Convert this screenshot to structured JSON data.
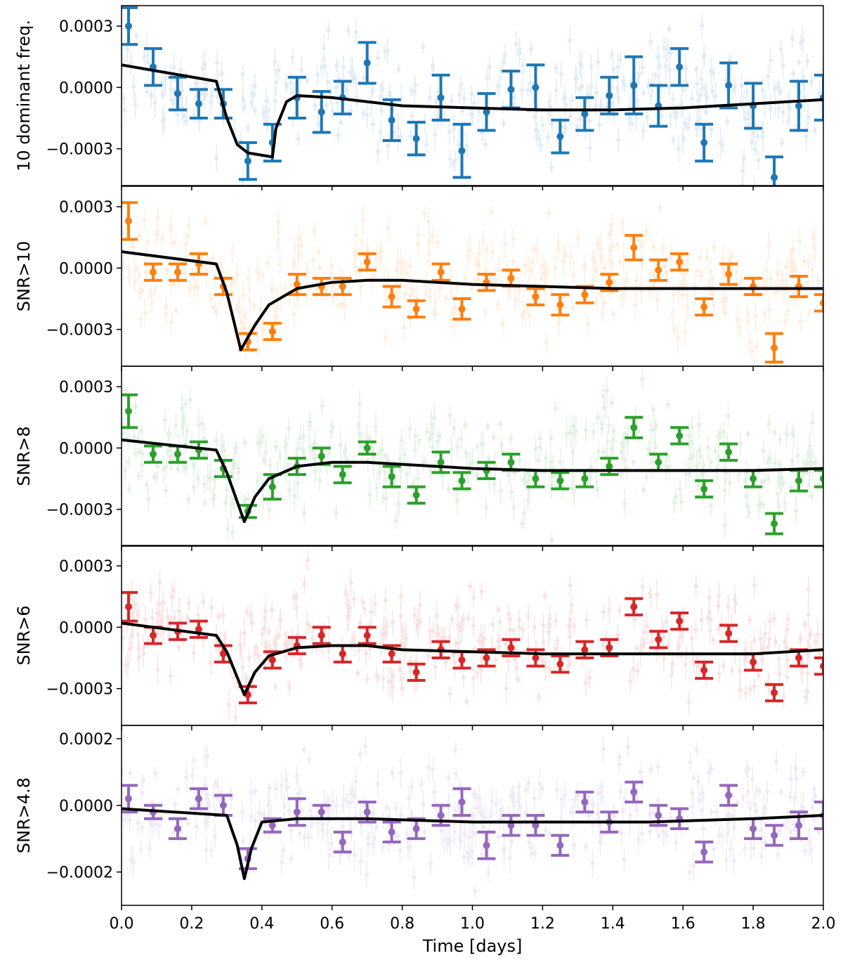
{
  "chart_data": {
    "type": "scatter",
    "xlabel": "Time [days]",
    "xlim": [
      0.0,
      2.0
    ],
    "xticks": [
      "0.0",
      "0.2",
      "0.4",
      "0.6",
      "0.8",
      "1.0",
      "1.2",
      "1.4",
      "1.6",
      "1.8",
      "2.0"
    ],
    "binned_times": [
      0.02,
      0.09,
      0.16,
      0.22,
      0.29,
      0.36,
      0.43,
      0.5,
      0.57,
      0.63,
      0.7,
      0.77,
      0.84,
      0.91,
      0.97,
      1.04,
      1.11,
      1.18,
      1.25,
      1.32,
      1.39,
      1.46,
      1.53,
      1.59,
      1.66,
      1.73,
      1.8,
      1.86,
      1.93,
      2.0
    ],
    "panels": [
      {
        "ylabel": "10 dominant freq.",
        "color": "#1f77b4",
        "ylim": [
          -0.00048,
          0.0004
        ],
        "yticks": [
          0.0003,
          0.0,
          -0.0003
        ],
        "ytick_labels": [
          "0.0003",
          "0.0000",
          "−0.0003"
        ],
        "binned_values": [
          0.0003,
          0.0001,
          -3e-05,
          -8e-05,
          -8e-05,
          -0.00036,
          -0.00027,
          -5e-05,
          -0.00012,
          -5e-05,
          0.00012,
          -0.00016,
          -0.00025,
          -5e-05,
          -0.00031,
          -0.00012,
          -1e-05,
          0.0,
          -0.00024,
          -0.00013,
          -4e-05,
          1e-05,
          -9e-05,
          0.0001,
          -0.00027,
          1e-05,
          -9e-05,
          -0.00044,
          -9e-05,
          -5e-05
        ],
        "binned_errors": [
          9e-05,
          9e-05,
          8e-05,
          7e-05,
          7e-05,
          9e-05,
          9e-05,
          0.0001,
          0.0001,
          8e-05,
          0.0001,
          0.0001,
          8e-05,
          0.00011,
          0.00013,
          9e-05,
          9e-05,
          0.00011,
          8e-05,
          8e-05,
          9e-05,
          0.00014,
          0.0001,
          9e-05,
          9e-05,
          0.00011,
          0.00011,
          0.0001,
          0.00012,
          0.00011
        ],
        "model": [
          [
            0.0,
            0.00011
          ],
          [
            0.27,
            3e-05
          ],
          [
            0.3,
            -0.00015
          ],
          [
            0.33,
            -0.00028
          ],
          [
            0.36,
            -0.00032
          ],
          [
            0.43,
            -0.00034
          ],
          [
            0.44,
            -0.0002
          ],
          [
            0.47,
            -7e-05
          ],
          [
            0.5,
            -4e-05
          ],
          [
            0.6,
            -5e-05
          ],
          [
            0.8,
            -9e-05
          ],
          [
            1.0,
            -0.0001
          ],
          [
            1.2,
            -0.00011
          ],
          [
            1.4,
            -0.00011
          ],
          [
            1.6,
            -0.0001
          ],
          [
            1.8,
            -8e-05
          ],
          [
            2.0,
            -6e-05
          ]
        ]
      },
      {
        "ylabel": "SNR>10",
        "color": "#ff7f0e",
        "ylim": [
          -0.00048,
          0.0004
        ],
        "yticks": [
          0.0003,
          0.0,
          -0.0003
        ],
        "ytick_labels": [
          "0.0003",
          "0.0000",
          "−0.0003"
        ],
        "binned_values": [
          0.00023,
          -2e-05,
          -2e-05,
          2e-05,
          -9e-05,
          -0.00036,
          -0.00031,
          -8e-05,
          -9e-05,
          -9e-05,
          3e-05,
          -0.00014,
          -0.0002,
          -2e-05,
          -0.0002,
          -7e-05,
          -5e-05,
          -0.00014,
          -0.00018,
          -0.00013,
          -7e-05,
          0.0001,
          -1e-05,
          3e-05,
          -0.00019,
          -3e-05,
          -9e-05,
          -0.00039,
          -9e-05,
          -0.00017
        ],
        "binned_errors": [
          9e-05,
          4e-05,
          4e-05,
          5e-05,
          4e-05,
          4e-05,
          4e-05,
          5e-05,
          4e-05,
          4e-05,
          4e-05,
          5e-05,
          4e-05,
          4e-05,
          5e-05,
          4e-05,
          4e-05,
          4e-05,
          5e-05,
          4e-05,
          4e-05,
          6e-05,
          5e-05,
          4e-05,
          4e-05,
          5e-05,
          4e-05,
          7e-05,
          5e-05,
          4e-05
        ],
        "model": [
          [
            0.0,
            8e-05
          ],
          [
            0.27,
            2e-05
          ],
          [
            0.3,
            -0.00012
          ],
          [
            0.34,
            -0.0004
          ],
          [
            0.38,
            -0.00028
          ],
          [
            0.42,
            -0.00018
          ],
          [
            0.5,
            -0.0001
          ],
          [
            0.6,
            -7e-05
          ],
          [
            0.7,
            -6e-05
          ],
          [
            0.8,
            -6e-05
          ],
          [
            1.0,
            -8e-05
          ],
          [
            1.2,
            -9e-05
          ],
          [
            1.4,
            -0.0001
          ],
          [
            1.6,
            -0.0001
          ],
          [
            1.8,
            -0.0001
          ],
          [
            2.0,
            -0.0001
          ]
        ]
      },
      {
        "ylabel": "SNR>8",
        "color": "#2ca02c",
        "ylim": [
          -0.00048,
          0.0004
        ],
        "yticks": [
          0.0003,
          0.0,
          -0.0003
        ],
        "ytick_labels": [
          "0.0003",
          "0.0000",
          "−0.0003"
        ],
        "binned_values": [
          0.00018,
          -3e-05,
          -3e-05,
          -1e-05,
          -0.0001,
          -0.00031,
          -0.00019,
          -9e-05,
          -4e-05,
          -0.00013,
          0.0,
          -0.00014,
          -0.00023,
          -7e-05,
          -0.00016,
          -0.00011,
          -7e-05,
          -0.00015,
          -0.00016,
          -0.00015,
          -9e-05,
          0.0001,
          -7e-05,
          6e-05,
          -0.0002,
          -2e-05,
          -0.00015,
          -0.00037,
          -0.00016,
          -0.00015
        ],
        "binned_errors": [
          8e-05,
          4e-05,
          4e-05,
          4e-05,
          4e-05,
          3e-05,
          6e-05,
          4e-05,
          4e-05,
          4e-05,
          3e-05,
          5e-05,
          4e-05,
          5e-05,
          4e-05,
          4e-05,
          4e-05,
          4e-05,
          4e-05,
          4e-05,
          4e-05,
          5e-05,
          4e-05,
          4e-05,
          4e-05,
          4e-05,
          4e-05,
          5e-05,
          5e-05,
          4e-05
        ],
        "model": [
          [
            0.0,
            4e-05
          ],
          [
            0.27,
            -1e-05
          ],
          [
            0.3,
            -0.00012
          ],
          [
            0.35,
            -0.00036
          ],
          [
            0.38,
            -0.00024
          ],
          [
            0.42,
            -0.00015
          ],
          [
            0.5,
            -9e-05
          ],
          [
            0.6,
            -7e-05
          ],
          [
            0.7,
            -7e-05
          ],
          [
            0.8,
            -8e-05
          ],
          [
            1.0,
            -0.0001
          ],
          [
            1.2,
            -0.00011
          ],
          [
            1.4,
            -0.00011
          ],
          [
            1.6,
            -0.00011
          ],
          [
            1.8,
            -0.00011
          ],
          [
            2.0,
            -0.0001
          ]
        ]
      },
      {
        "ylabel": "SNR>6",
        "color": "#d62728",
        "ylim": [
          -0.00048,
          0.0004
        ],
        "yticks": [
          0.0003,
          0.0,
          -0.0003
        ],
        "ytick_labels": [
          "0.0003",
          "0.0000",
          "−0.0003"
        ],
        "binned_values": [
          0.0001,
          -4e-05,
          -2e-05,
          -1e-05,
          -0.00013,
          -0.00033,
          -0.00016,
          -9e-05,
          -4e-05,
          -0.00013,
          -4e-05,
          -0.00013,
          -0.00022,
          -0.00011,
          -0.00016,
          -0.00015,
          -0.0001,
          -0.00015,
          -0.00018,
          -0.00011,
          -0.0001,
          0.0001,
          -6e-05,
          3e-05,
          -0.00021,
          -3e-05,
          -0.00017,
          -0.00032,
          -0.00015,
          -0.00019
        ],
        "binned_errors": [
          7e-05,
          4e-05,
          4e-05,
          4e-05,
          4e-05,
          4e-05,
          4e-05,
          4e-05,
          4e-05,
          4e-05,
          4e-05,
          4e-05,
          4e-05,
          4e-05,
          4e-05,
          4e-05,
          4e-05,
          4e-05,
          4e-05,
          4e-05,
          4e-05,
          4e-05,
          4e-05,
          4e-05,
          4e-05,
          4e-05,
          4e-05,
          4e-05,
          4e-05,
          4e-05
        ],
        "model": [
          [
            0.0,
            2e-05
          ],
          [
            0.27,
            -4e-05
          ],
          [
            0.3,
            -0.00012
          ],
          [
            0.35,
            -0.00033
          ],
          [
            0.38,
            -0.00022
          ],
          [
            0.42,
            -0.00014
          ],
          [
            0.5,
            -0.0001
          ],
          [
            0.6,
            -9e-05
          ],
          [
            0.7,
            -9e-05
          ],
          [
            0.8,
            -0.00011
          ],
          [
            1.0,
            -0.00012
          ],
          [
            1.2,
            -0.00013
          ],
          [
            1.4,
            -0.00013
          ],
          [
            1.6,
            -0.00013
          ],
          [
            1.8,
            -0.00013
          ],
          [
            2.0,
            -0.00011
          ]
        ]
      },
      {
        "ylabel": "SNR>4.8",
        "color": "#9467bd",
        "ylim": [
          -0.0003,
          0.00024
        ],
        "yticks": [
          0.0002,
          0.0,
          -0.0002
        ],
        "ytick_labels": [
          "0.0002",
          "0.0000",
          "−0.0002"
        ],
        "binned_values": [
          2e-05,
          -2e-05,
          -7e-05,
          2e-05,
          0.0,
          -0.00016,
          -6e-05,
          -2e-05,
          -2e-05,
          -0.00011,
          -2e-05,
          -8e-05,
          -7e-05,
          -3e-05,
          1e-05,
          -0.00012,
          -6e-05,
          -6e-05,
          -0.00012,
          1e-05,
          -5e-05,
          4e-05,
          -3e-05,
          -4e-05,
          -0.00014,
          3e-05,
          -7e-05,
          -9e-05,
          -6e-05,
          -3e-05
        ],
        "binned_errors": [
          4e-05,
          2e-05,
          3e-05,
          3e-05,
          3e-05,
          3e-05,
          2e-05,
          4e-05,
          2e-05,
          3e-05,
          3e-05,
          3e-05,
          3e-05,
          3e-05,
          4e-05,
          4e-05,
          3e-05,
          3e-05,
          3e-05,
          3e-05,
          3e-05,
          3e-05,
          3e-05,
          3e-05,
          3e-05,
          3e-05,
          3e-05,
          3e-05,
          4e-05,
          4e-05
        ],
        "model": [
          [
            0.0,
            -1e-05
          ],
          [
            0.3,
            -3e-05
          ],
          [
            0.33,
            -0.00012
          ],
          [
            0.35,
            -0.00022
          ],
          [
            0.37,
            -0.00013
          ],
          [
            0.4,
            -5e-05
          ],
          [
            0.5,
            -4e-05
          ],
          [
            0.7,
            -4e-05
          ],
          [
            1.0,
            -5e-05
          ],
          [
            1.2,
            -5e-05
          ],
          [
            1.5,
            -5e-05
          ],
          [
            1.8,
            -4e-05
          ],
          [
            2.0,
            -3e-05
          ]
        ]
      }
    ]
  }
}
